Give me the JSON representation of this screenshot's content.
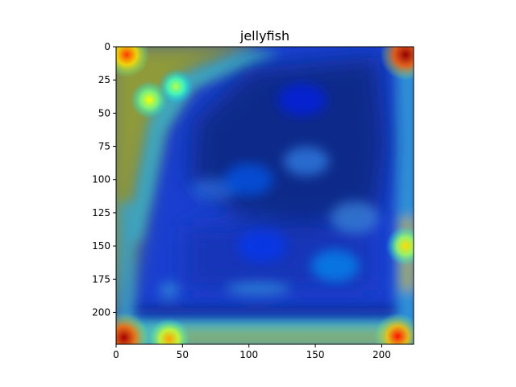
{
  "chart_data": {
    "type": "heatmap",
    "title": "jellyfish",
    "xlabel": "",
    "ylabel": "",
    "xlim": [
      0,
      224
    ],
    "ylim": [
      224,
      0
    ],
    "y_inverted": true,
    "colormap": "jet",
    "overlay": "heatmap over photograph",
    "grid": false,
    "xticks": [
      0,
      50,
      100,
      150,
      200
    ],
    "yticks": [
      0,
      25,
      50,
      75,
      100,
      125,
      150,
      175,
      200
    ],
    "hotspots": [
      {
        "x": 8,
        "y": 6,
        "level": 0.82
      },
      {
        "x": 218,
        "y": 6,
        "level": 0.98
      },
      {
        "x": 6,
        "y": 219,
        "level": 0.96
      },
      {
        "x": 40,
        "y": 220,
        "level": 0.72
      },
      {
        "x": 212,
        "y": 218,
        "level": 0.86
      },
      {
        "x": 218,
        "y": 150,
        "level": 0.66
      },
      {
        "x": 25,
        "y": 40,
        "level": 0.62
      },
      {
        "x": 45,
        "y": 30,
        "level": 0.55
      }
    ],
    "lowlands": [
      {
        "x": 140,
        "y": 40,
        "level": 0.05
      },
      {
        "x": 110,
        "y": 150,
        "level": 0.08
      },
      {
        "x": 100,
        "y": 100,
        "level": 0.12
      },
      {
        "x": 165,
        "y": 165,
        "level": 0.18
      }
    ]
  }
}
